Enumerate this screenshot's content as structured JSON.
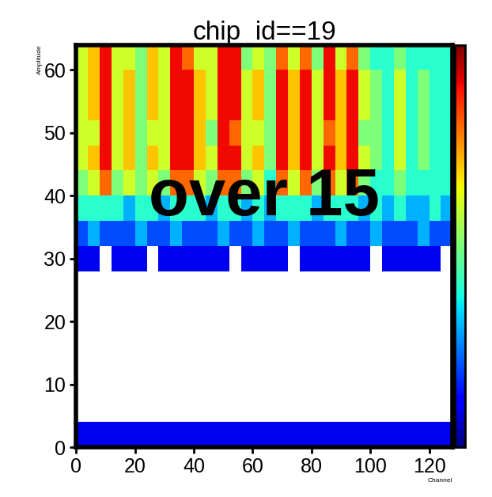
{
  "chart_data": {
    "type": "heatmap",
    "title": "chip_id==19",
    "x_label": "Channel",
    "y_label": "Amplitude",
    "annotation": "over 15",
    "xlim": [
      0,
      128
    ],
    "xticks": [
      0,
      20,
      40,
      60,
      80,
      100,
      120
    ],
    "ylim": [
      0,
      64
    ],
    "yticks": [
      0,
      10,
      20,
      30,
      40,
      50,
      60
    ],
    "x_edges": [
      0,
      4,
      8,
      12,
      16,
      20,
      24,
      28,
      32,
      36,
      40,
      44,
      48,
      52,
      56,
      60,
      64,
      68,
      72,
      76,
      80,
      84,
      88,
      92,
      96,
      100,
      104,
      108,
      112,
      116,
      120,
      124,
      128
    ],
    "y_edges": [
      0,
      4,
      8,
      12,
      16,
      20,
      24,
      28,
      32,
      36,
      40,
      44,
      48,
      52,
      56,
      60,
      64
    ],
    "zlim": [
      0,
      10
    ],
    "zticks": [],
    "cells": [
      [
        1,
        1,
        1,
        1,
        1,
        1,
        1,
        1,
        1,
        1,
        1,
        1,
        1,
        1,
        1,
        1,
        1,
        1,
        1,
        1,
        1,
        1,
        1,
        1,
        1,
        1,
        1,
        1,
        1,
        1,
        1,
        1
      ],
      [
        0,
        0,
        0,
        0,
        0,
        0,
        0,
        0,
        0,
        0,
        0,
        0,
        0,
        0,
        0,
        0,
        0,
        0,
        0,
        0,
        0,
        0,
        0,
        0,
        0,
        0,
        0,
        0,
        0,
        0,
        0,
        0
      ],
      [
        0,
        0,
        0,
        0,
        0,
        0,
        0,
        0,
        0,
        0,
        0,
        0,
        0,
        0,
        0,
        0,
        0,
        0,
        0,
        0,
        0,
        0,
        0,
        0,
        0,
        0,
        0,
        0,
        0,
        0,
        0,
        0
      ],
      [
        0,
        0,
        0,
        0,
        0,
        0,
        0,
        0,
        0,
        0,
        0,
        0,
        0,
        0,
        0,
        0,
        0,
        0,
        0,
        0,
        0,
        0,
        0,
        0,
        0,
        0,
        0,
        0,
        0,
        0,
        0,
        0
      ],
      [
        0,
        0,
        0,
        0,
        0,
        0,
        0,
        0,
        0,
        0,
        0,
        0,
        0,
        0,
        0,
        0,
        0,
        0,
        0,
        0,
        0,
        0,
        0,
        0,
        0,
        0,
        0,
        0,
        0,
        0,
        0,
        0
      ],
      [
        0,
        0,
        0,
        0,
        0,
        0,
        0,
        0,
        0,
        0,
        0,
        0,
        0,
        0,
        0,
        0,
        0,
        0,
        0,
        0,
        0,
        0,
        0,
        0,
        0,
        0,
        0,
        0,
        0,
        0,
        0,
        0
      ],
      [
        0,
        0,
        0,
        0,
        0,
        0,
        0,
        0,
        0,
        0,
        0,
        0,
        0,
        0,
        0,
        0,
        0,
        0,
        0,
        0,
        0,
        0,
        0,
        0,
        0,
        0,
        0,
        0,
        0,
        0,
        0,
        0
      ],
      [
        1,
        1,
        0,
        1,
        1,
        1,
        0,
        1,
        1,
        1,
        1,
        1,
        1,
        0,
        1,
        1,
        1,
        1,
        0,
        1,
        1,
        1,
        1,
        1,
        1,
        0,
        1,
        1,
        1,
        1,
        1,
        0
      ],
      [
        2,
        3,
        2,
        2,
        2,
        3,
        2,
        2,
        3,
        2,
        2,
        2,
        3,
        2,
        2,
        3,
        2,
        2,
        3,
        2,
        2,
        2,
        3,
        2,
        2,
        3,
        2,
        2,
        2,
        3,
        2,
        2
      ],
      [
        4,
        4,
        4,
        4,
        3,
        4,
        4,
        3,
        4,
        4,
        4,
        3,
        4,
        4,
        3,
        4,
        3,
        4,
        4,
        4,
        3,
        4,
        4,
        4,
        3,
        4,
        3,
        4,
        3,
        3,
        4,
        3
      ],
      [
        5,
        6,
        8,
        5,
        6,
        5,
        6,
        5,
        8,
        8,
        6,
        5,
        8,
        8,
        5,
        6,
        4,
        8,
        6,
        8,
        5,
        8,
        6,
        8,
        5,
        4,
        4,
        5,
        4,
        4,
        4,
        4
      ],
      [
        6,
        7,
        9,
        6,
        7,
        5,
        7,
        6,
        9,
        9,
        7,
        6,
        9,
        9,
        6,
        7,
        5,
        9,
        7,
        9,
        6,
        9,
        7,
        9,
        6,
        5,
        4,
        6,
        4,
        5,
        4,
        4
      ],
      [
        6,
        6,
        9,
        6,
        7,
        5,
        6,
        6,
        9,
        9,
        7,
        5,
        9,
        8,
        6,
        6,
        5,
        9,
        7,
        9,
        6,
        8,
        7,
        9,
        5,
        5,
        4,
        6,
        4,
        5,
        4,
        4
      ],
      [
        6,
        7,
        9,
        6,
        7,
        5,
        7,
        6,
        9,
        9,
        7,
        6,
        9,
        9,
        6,
        7,
        5,
        9,
        7,
        9,
        6,
        9,
        7,
        9,
        6,
        5,
        4,
        6,
        4,
        5,
        4,
        4
      ],
      [
        6,
        7,
        9,
        6,
        7,
        5,
        7,
        6,
        9,
        9,
        7,
        6,
        9,
        9,
        6,
        7,
        5,
        9,
        7,
        9,
        6,
        9,
        7,
        9,
        6,
        5,
        4,
        6,
        4,
        5,
        4,
        4
      ],
      [
        6,
        7,
        9,
        6,
        6,
        5,
        7,
        6,
        9,
        8,
        6,
        6,
        9,
        9,
        5,
        6,
        5,
        8,
        6,
        8,
        5,
        9,
        6,
        8,
        5,
        4,
        4,
        5,
        4,
        4,
        4,
        4
      ]
    ]
  }
}
